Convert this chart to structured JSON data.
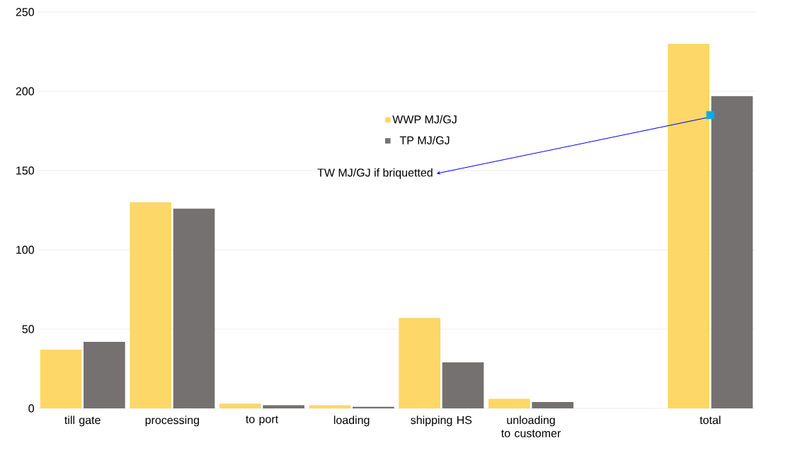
{
  "chart_data": {
    "type": "bar",
    "categories": [
      "till gate",
      "processing",
      "to port",
      "loading",
      "shipping HS",
      "unloading to customer",
      null,
      "total"
    ],
    "series": [
      {
        "name": "WWP MJ/GJ",
        "color": "#fdd767",
        "values": [
          37,
          130,
          3,
          2,
          57,
          6,
          null,
          230
        ]
      },
      {
        "name": "TP MJ/GJ",
        "color": "#767171",
        "values": [
          42,
          126,
          2,
          1,
          29,
          4,
          null,
          197
        ]
      },
      {
        "name": "TW MJ/GJ if briquetted",
        "type": "scatter",
        "marker": "square",
        "color": "#00adef",
        "values": [
          null,
          null,
          null,
          null,
          null,
          null,
          null,
          185
        ]
      }
    ],
    "ylim": [
      0,
      250
    ],
    "yticks": [
      0,
      50,
      100,
      150,
      200,
      250
    ],
    "grid": "y",
    "legend": "top"
  }
}
